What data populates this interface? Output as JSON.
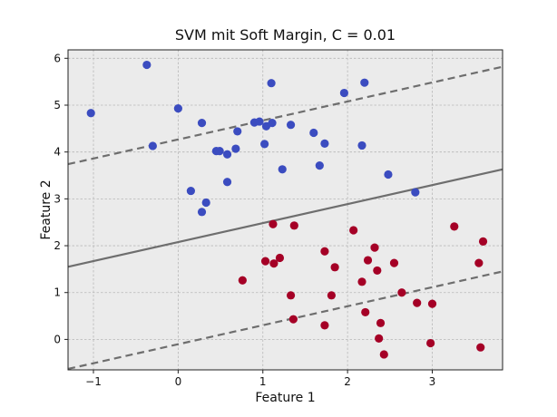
{
  "chart_data": {
    "type": "scatter",
    "title": "SVM mit Soft Margin, C = 0.01",
    "xlabel": "Feature 1",
    "ylabel": "Feature 2",
    "xlim": [
      -1.3,
      3.83
    ],
    "ylim": [
      -0.65,
      6.18
    ],
    "xticks": [
      -1,
      0,
      1,
      2,
      3
    ],
    "yticks": [
      0,
      1,
      2,
      3,
      4,
      5,
      6
    ],
    "grid": true,
    "colors": {
      "background": "#ebebeb",
      "class_blue": "#3b4cc0",
      "class_red": "#a50026",
      "lines": "#6e6e6e"
    },
    "lines": [
      {
        "kind": "decision-boundary",
        "style": "solid",
        "p1": [
          -1.3,
          1.55
        ],
        "p2": [
          3.83,
          3.63
        ]
      },
      {
        "kind": "margin-upper",
        "style": "dashed",
        "p1": [
          -1.3,
          3.74
        ],
        "p2": [
          3.83,
          5.82
        ]
      },
      {
        "kind": "margin-lower",
        "style": "dashed",
        "p1": [
          -1.3,
          -0.63
        ],
        "p2": [
          3.83,
          1.45
        ]
      }
    ],
    "series": [
      {
        "color": "#3b4cc0",
        "points": [
          [
            -1.03,
            4.83
          ],
          [
            -0.37,
            5.86
          ],
          [
            -0.3,
            4.13
          ],
          [
            0.0,
            4.93
          ],
          [
            0.15,
            3.17
          ],
          [
            0.28,
            4.62
          ],
          [
            0.28,
            2.72
          ],
          [
            0.33,
            2.92
          ],
          [
            0.45,
            4.02
          ],
          [
            0.49,
            4.02
          ],
          [
            0.58,
            3.95
          ],
          [
            0.58,
            3.36
          ],
          [
            0.68,
            4.07
          ],
          [
            0.7,
            4.44
          ],
          [
            0.9,
            4.63
          ],
          [
            0.96,
            4.65
          ],
          [
            1.02,
            4.17
          ],
          [
            1.04,
            4.55
          ],
          [
            1.1,
            5.47
          ],
          [
            1.11,
            4.62
          ],
          [
            1.23,
            3.63
          ],
          [
            1.33,
            4.58
          ],
          [
            1.6,
            4.41
          ],
          [
            1.67,
            3.71
          ],
          [
            1.73,
            4.18
          ],
          [
            1.96,
            5.26
          ],
          [
            2.17,
            4.14
          ],
          [
            2.2,
            5.48
          ],
          [
            2.48,
            3.52
          ],
          [
            2.8,
            3.14
          ]
        ]
      },
      {
        "color": "#a50026",
        "points": [
          [
            0.76,
            1.26
          ],
          [
            1.03,
            1.67
          ],
          [
            1.12,
            2.46
          ],
          [
            1.13,
            1.62
          ],
          [
            1.2,
            1.74
          ],
          [
            1.33,
            0.94
          ],
          [
            1.36,
            0.43
          ],
          [
            1.37,
            2.43
          ],
          [
            1.73,
            1.88
          ],
          [
            1.73,
            0.3
          ],
          [
            1.81,
            0.94
          ],
          [
            1.85,
            1.54
          ],
          [
            2.07,
            2.33
          ],
          [
            2.17,
            1.23
          ],
          [
            2.21,
            0.58
          ],
          [
            2.24,
            1.69
          ],
          [
            2.32,
            1.96
          ],
          [
            2.35,
            1.47
          ],
          [
            2.37,
            0.02
          ],
          [
            2.39,
            0.35
          ],
          [
            2.43,
            -0.32
          ],
          [
            2.55,
            1.63
          ],
          [
            2.64,
            1.0
          ],
          [
            2.82,
            0.78
          ],
          [
            2.98,
            -0.08
          ],
          [
            3.0,
            0.76
          ],
          [
            3.26,
            2.41
          ],
          [
            3.55,
            1.63
          ],
          [
            3.57,
            -0.17
          ],
          [
            3.6,
            2.09
          ]
        ]
      }
    ]
  }
}
